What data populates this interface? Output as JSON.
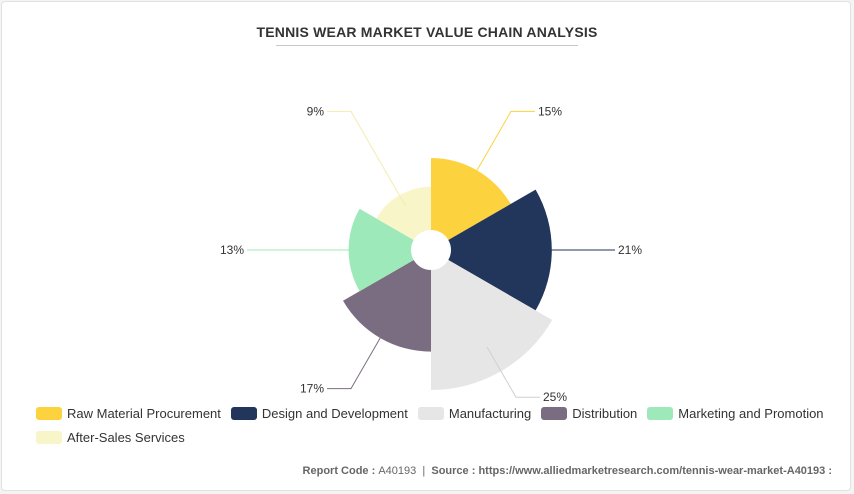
{
  "chart_data": {
    "type": "pie",
    "subtype": "nightingale-rose",
    "title": "TENNIS WEAR MARKET VALUE CHAIN ANALYSIS",
    "categories": [
      "Raw Material Procurement",
      "Design and Development",
      "Manufacturing",
      "Distribution",
      "Marketing and Promotion",
      "After-Sales Services"
    ],
    "values": [
      15,
      21,
      25,
      17,
      13,
      9
    ],
    "value_labels": [
      "15%",
      "21%",
      "25%",
      "17%",
      "13%",
      "9%"
    ],
    "colors": [
      "#fdd23f",
      "#22355a",
      "#e6e6e6",
      "#7b6d81",
      "#9de9b9",
      "#f8f5c9"
    ],
    "legend_position": "bottom-left"
  },
  "footer": {
    "report_code_label": "Report Code : ",
    "report_code": "A40193",
    "separator": "  |  ",
    "source_label": "Source : ",
    "source_url": "https://www.alliedmarketresearch.com/tennis-wear-market-A40193 :"
  }
}
